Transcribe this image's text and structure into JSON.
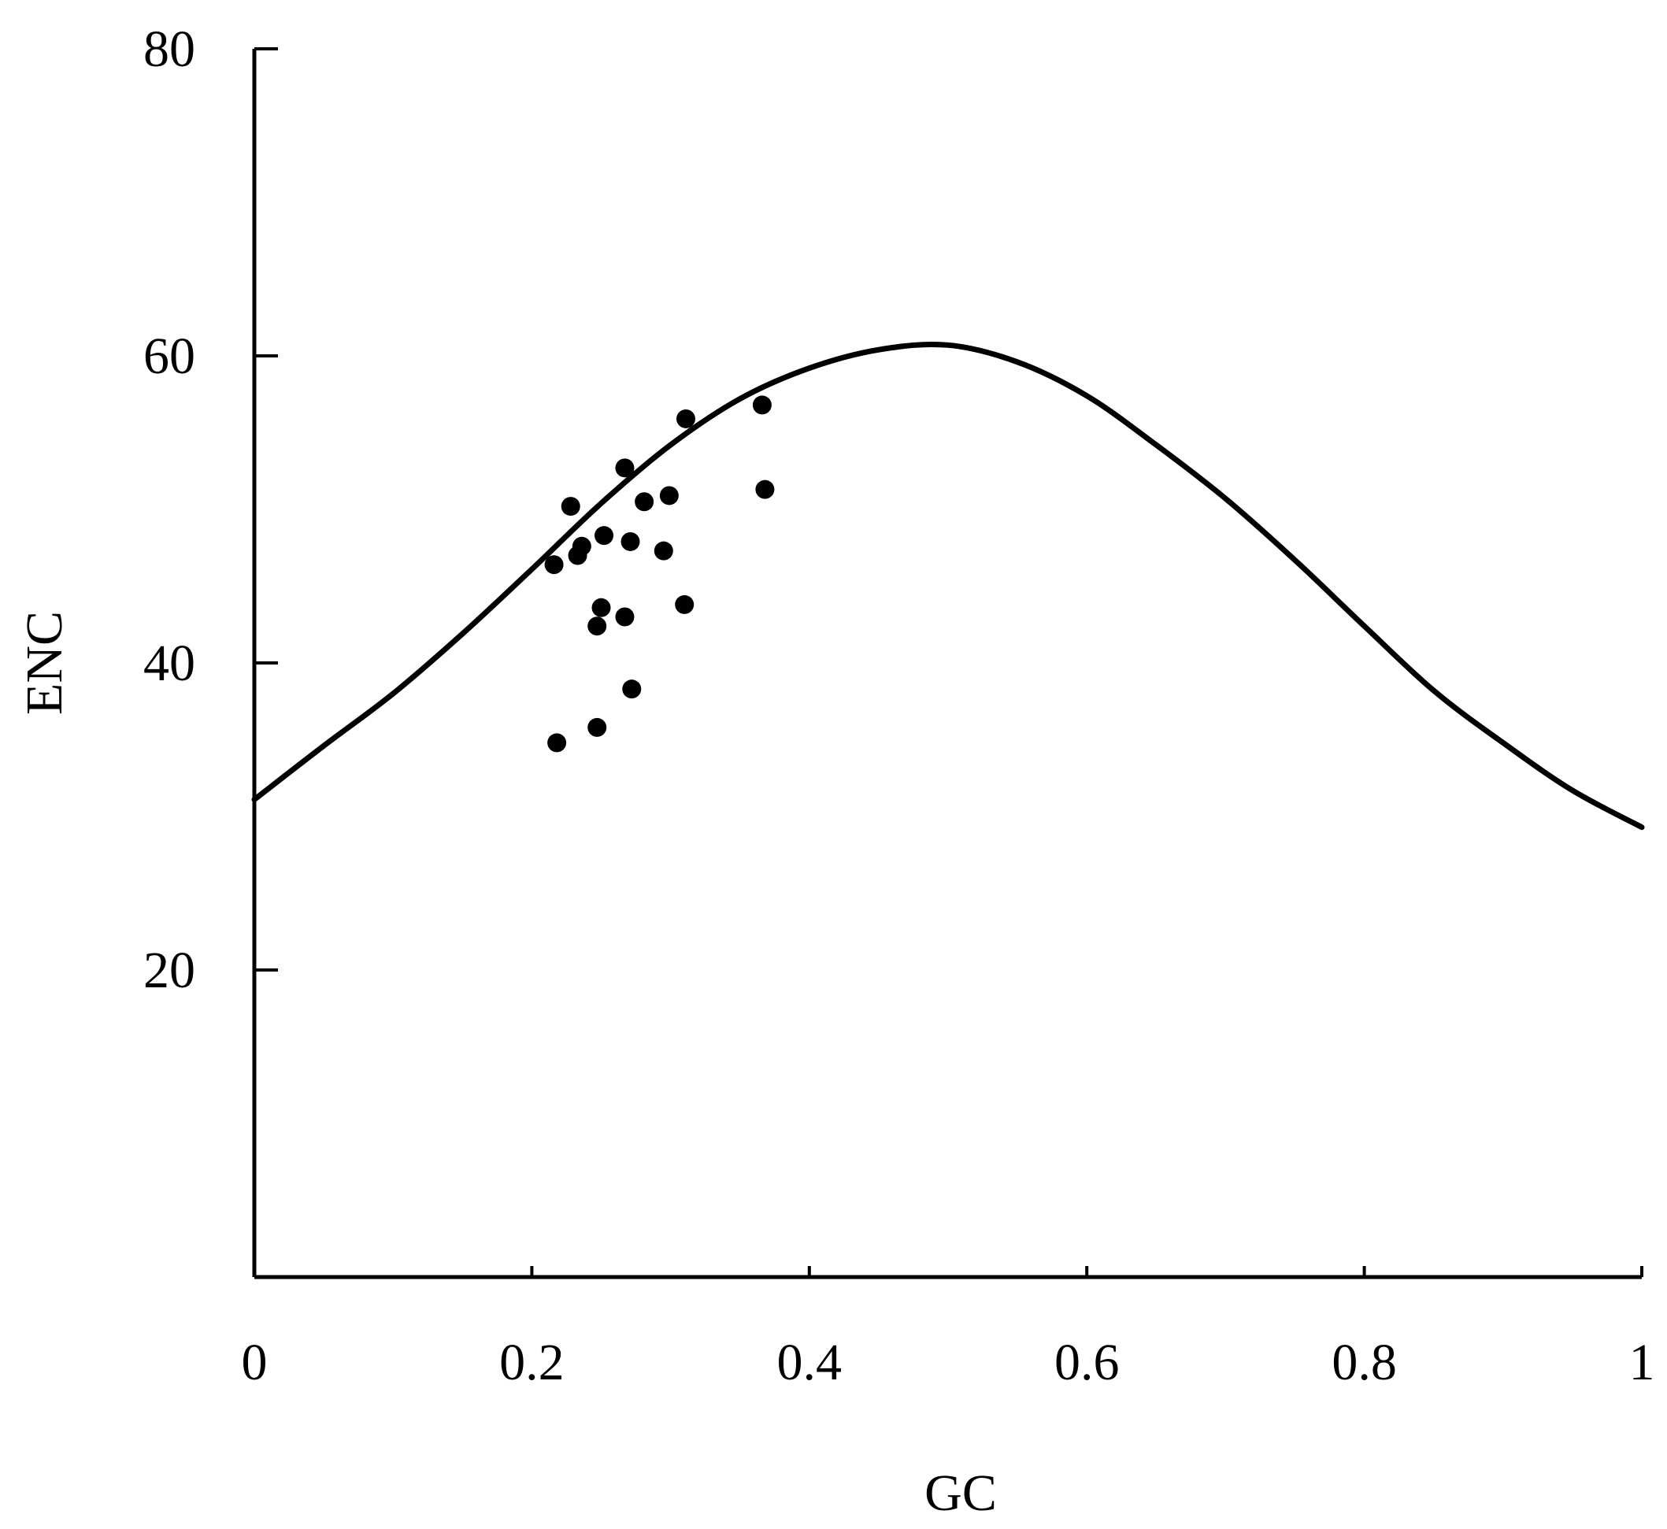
{
  "chart_data": {
    "type": "scatter",
    "title": "",
    "xlabel": "GC",
    "ylabel": "ENC",
    "xlim": [
      0,
      1
    ],
    "ylim": [
      0,
      80
    ],
    "x_ticks": [
      0,
      0.2,
      0.4,
      0.6,
      0.8,
      1
    ],
    "x_tick_labels": [
      "0",
      "0.2",
      "0.4",
      "0.6",
      "0.8",
      "1"
    ],
    "y_ticks": [
      20,
      40,
      60,
      80
    ],
    "y_tick_labels": [
      "20",
      "40",
      "60",
      "80"
    ],
    "grid": false,
    "legend": "none",
    "colors": {
      "axis": "#000000",
      "curve": "#000000",
      "points": "#000000"
    },
    "curve": {
      "name": "",
      "x": [
        0,
        0.05,
        0.1,
        0.15,
        0.2,
        0.25,
        0.3,
        0.35,
        0.4,
        0.45,
        0.5,
        0.55,
        0.6,
        0.65,
        0.7,
        0.75,
        0.8,
        0.85,
        0.9,
        0.95,
        1
      ],
      "y": [
        31.1,
        34.6,
        38.0,
        41.9,
        46.1,
        50.4,
        54.2,
        57.2,
        59.2,
        60.4,
        60.7,
        59.6,
        57.4,
        54.2,
        50.7,
        46.7,
        42.4,
        38.2,
        34.8,
        31.7,
        29.3
      ]
    },
    "series": [
      {
        "name": "",
        "x": [
          0.216,
          0.218,
          0.228,
          0.233,
          0.236,
          0.247,
          0.247,
          0.25,
          0.252,
          0.267,
          0.267,
          0.271,
          0.272,
          0.281,
          0.295,
          0.299,
          0.31,
          0.311,
          0.366,
          0.368
        ],
        "y": [
          46.4,
          34.8,
          50.2,
          47.0,
          47.6,
          42.4,
          35.8,
          43.6,
          48.3,
          52.7,
          43.0,
          47.9,
          38.3,
          50.5,
          47.3,
          50.9,
          43.8,
          55.9,
          56.8,
          51.3
        ]
      }
    ]
  }
}
